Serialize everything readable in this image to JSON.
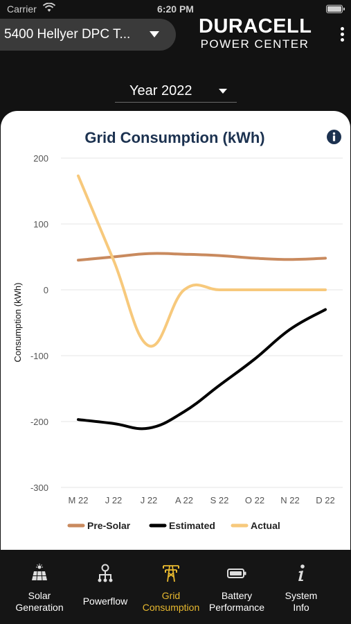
{
  "status_bar": {
    "carrier": "Carrier",
    "time": "6:20 PM"
  },
  "header": {
    "site_name": "5400 Hellyer DPC T...",
    "brand_name": "DURACELL",
    "brand_sub": "POWER CENTER"
  },
  "year_selector": {
    "label": "Year 2022"
  },
  "chart_card": {
    "title": "Grid Consumption (kWh)"
  },
  "chart_data": {
    "type": "line",
    "title": "Grid Consumption (kWh)",
    "ylabel": "Consumption (kWh)",
    "xlabel": "",
    "ylim": [
      -300,
      200
    ],
    "yticks": [
      200,
      100,
      0,
      -100,
      -200,
      -300
    ],
    "categories": [
      "M 22",
      "J 22",
      "J 22",
      "A 22",
      "S 22",
      "O 22",
      "N 22",
      "D 22"
    ],
    "grid": true,
    "legend_position": "bottom",
    "series": [
      {
        "name": "Pre-Solar",
        "color": "#c98a5e",
        "values": [
          45,
          50,
          55,
          54,
          52,
          48,
          46,
          48
        ]
      },
      {
        "name": "Estimated",
        "color": "#000000",
        "values": [
          -197,
          -203,
          -210,
          -185,
          -145,
          -105,
          -60,
          -30
        ]
      },
      {
        "name": "Actual",
        "color": "#f7c97c",
        "values": [
          173,
          45,
          -85,
          0,
          0,
          0,
          0,
          0
        ]
      }
    ]
  },
  "tabs": [
    {
      "label": "Solar\nGeneration",
      "icon": "solar-panel-icon",
      "active": false
    },
    {
      "label": "Powerflow",
      "icon": "powerflow-icon",
      "active": false
    },
    {
      "label": "Grid\nConsumption",
      "icon": "power-tower-icon",
      "active": true
    },
    {
      "label": "Battery\nPerformance",
      "icon": "battery-icon",
      "active": false
    },
    {
      "label": "System\nInfo",
      "icon": "info-italic-icon",
      "active": false
    }
  ],
  "colors": {
    "active_tab": "#e8b92f",
    "title": "#1c3250",
    "background": "#121212"
  }
}
